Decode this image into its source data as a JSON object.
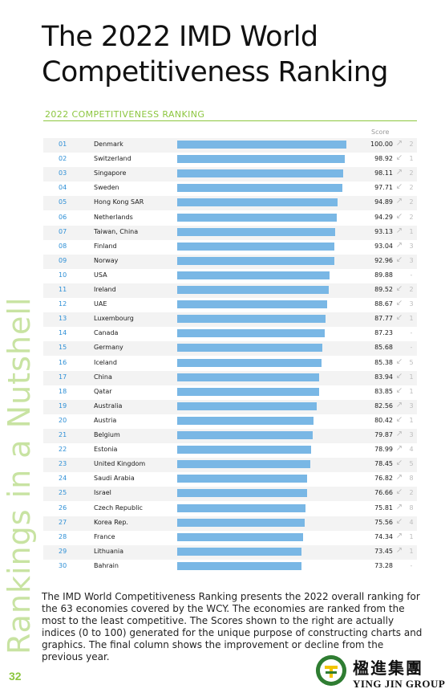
{
  "title_line1": "The 2022 IMD World",
  "title_line2": "Competitiveness Ranking",
  "section_label": "2022 COMPETITIVENESS RANKING",
  "score_header": "Score",
  "side_text": "Rankings in a Nutshell",
  "description": "The IMD World Competitiveness Ranking presents the 2022 overall ranking for the 63 economies covered by the WCY. The economies are ranked from the most to the least competitive. The Scores shown to the right are actually indices (0 to 100) generated for the unique purpose of constructing charts and graphics. The final column shows the improvement or decline from the previous year.",
  "page_number": "32",
  "logo": {
    "chinese": "楹進集團",
    "english": "YING JIN GROUP"
  },
  "colors": {
    "bar": "#79b7e5",
    "rank": "#2d8fd6",
    "accent": "#8cc63f",
    "trend": "#bcbcbc"
  },
  "chart_data": {
    "type": "bar",
    "orientation": "horizontal",
    "title": "2022 COMPETITIVENESS RANKING",
    "value_label": "Score",
    "xlim": [
      0,
      100
    ],
    "rows": [
      {
        "rank": "01",
        "country": "Denmark",
        "score": 100.0,
        "trend": "up",
        "change": "2"
      },
      {
        "rank": "02",
        "country": "Switzerland",
        "score": 98.92,
        "trend": "down",
        "change": "1"
      },
      {
        "rank": "03",
        "country": "Singapore",
        "score": 98.11,
        "trend": "up",
        "change": "2"
      },
      {
        "rank": "04",
        "country": "Sweden",
        "score": 97.71,
        "trend": "down",
        "change": "2"
      },
      {
        "rank": "05",
        "country": "Hong Kong SAR",
        "score": 94.89,
        "trend": "up",
        "change": "2"
      },
      {
        "rank": "06",
        "country": "Netherlands",
        "score": 94.29,
        "trend": "down",
        "change": "2"
      },
      {
        "rank": "07",
        "country": "Taiwan, China",
        "score": 93.13,
        "trend": "up",
        "change": "1"
      },
      {
        "rank": "08",
        "country": "Finland",
        "score": 93.04,
        "trend": "up",
        "change": "3"
      },
      {
        "rank": "09",
        "country": "Norway",
        "score": 92.96,
        "trend": "down",
        "change": "3"
      },
      {
        "rank": "10",
        "country": "USA",
        "score": 89.88,
        "trend": "",
        "change": "-"
      },
      {
        "rank": "11",
        "country": "Ireland",
        "score": 89.52,
        "trend": "down",
        "change": "2"
      },
      {
        "rank": "12",
        "country": "UAE",
        "score": 88.67,
        "trend": "down",
        "change": "3"
      },
      {
        "rank": "13",
        "country": "Luxembourg",
        "score": 87.77,
        "trend": "down",
        "change": "1"
      },
      {
        "rank": "14",
        "country": "Canada",
        "score": 87.23,
        "trend": "",
        "change": "-"
      },
      {
        "rank": "15",
        "country": "Germany",
        "score": 85.68,
        "trend": "",
        "change": "-"
      },
      {
        "rank": "16",
        "country": "Iceland",
        "score": 85.38,
        "trend": "down",
        "change": "5"
      },
      {
        "rank": "17",
        "country": "China",
        "score": 83.94,
        "trend": "down",
        "change": "1"
      },
      {
        "rank": "18",
        "country": "Qatar",
        "score": 83.85,
        "trend": "down",
        "change": "1"
      },
      {
        "rank": "19",
        "country": "Australia",
        "score": 82.56,
        "trend": "up",
        "change": "3"
      },
      {
        "rank": "20",
        "country": "Austria",
        "score": 80.42,
        "trend": "down",
        "change": "1"
      },
      {
        "rank": "21",
        "country": "Belgium",
        "score": 79.87,
        "trend": "up",
        "change": "3"
      },
      {
        "rank": "22",
        "country": "Estonia",
        "score": 78.99,
        "trend": "up",
        "change": "4"
      },
      {
        "rank": "23",
        "country": "United Kingdom",
        "score": 78.45,
        "trend": "down",
        "change": "5"
      },
      {
        "rank": "24",
        "country": "Saudi Arabia",
        "score": 76.82,
        "trend": "up",
        "change": "8"
      },
      {
        "rank": "25",
        "country": "Israel",
        "score": 76.66,
        "trend": "down",
        "change": "2"
      },
      {
        "rank": "26",
        "country": "Czech Republic",
        "score": 75.81,
        "trend": "up",
        "change": "8"
      },
      {
        "rank": "27",
        "country": "Korea Rep.",
        "score": 75.56,
        "trend": "down",
        "change": "4"
      },
      {
        "rank": "28",
        "country": "France",
        "score": 74.34,
        "trend": "up",
        "change": "1"
      },
      {
        "rank": "29",
        "country": "Lithuania",
        "score": 73.45,
        "trend": "up",
        "change": "1"
      },
      {
        "rank": "30",
        "country": "Bahrain",
        "score": 73.28,
        "trend": "",
        "change": "-"
      }
    ]
  }
}
